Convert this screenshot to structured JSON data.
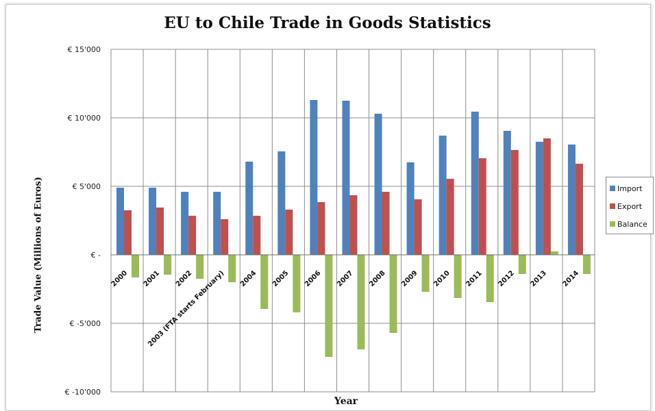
{
  "chart_data": {
    "type": "bar",
    "title": "EU to Chile Trade in Goods Statistics",
    "xlabel": "Year",
    "ylabel": "Trade Value (Millions of Euros)",
    "ylim": [
      -10000,
      15000
    ],
    "yticks": [
      15000,
      10000,
      5000,
      0,
      -5000,
      -10000
    ],
    "ytick_labels": [
      "€ 15'000",
      "€ 10'000",
      "€ 5'000",
      "€ -",
      "€ -5'000",
      "€ -10'000"
    ],
    "grid": true,
    "legend_position": "right",
    "categories": [
      "2000",
      "2001",
      "2002",
      "2003 (FTA starts February)",
      "2004",
      "2005",
      "2006",
      "2007",
      "2008",
      "2009",
      "2010",
      "2011",
      "2012",
      "2013",
      "2014"
    ],
    "series": [
      {
        "name": "Import",
        "color": "#4f81bd",
        "values": [
          4900,
          4900,
          4600,
          4600,
          6800,
          7550,
          11300,
          11250,
          10300,
          6750,
          8700,
          10450,
          9050,
          8250,
          8050
        ]
      },
      {
        "name": "Export",
        "color": "#c0504d",
        "values": [
          3250,
          3450,
          2850,
          2600,
          2850,
          3300,
          3850,
          4350,
          4600,
          4050,
          5550,
          7050,
          7650,
          8500,
          6650
        ]
      },
      {
        "name": "Balance",
        "color": "#9bbb59",
        "values": [
          -1650,
          -1450,
          -1750,
          -2000,
          -3950,
          -4200,
          -7450,
          -6900,
          -5700,
          -2700,
          -3150,
          -3450,
          -1400,
          250,
          -1400
        ]
      }
    ]
  }
}
